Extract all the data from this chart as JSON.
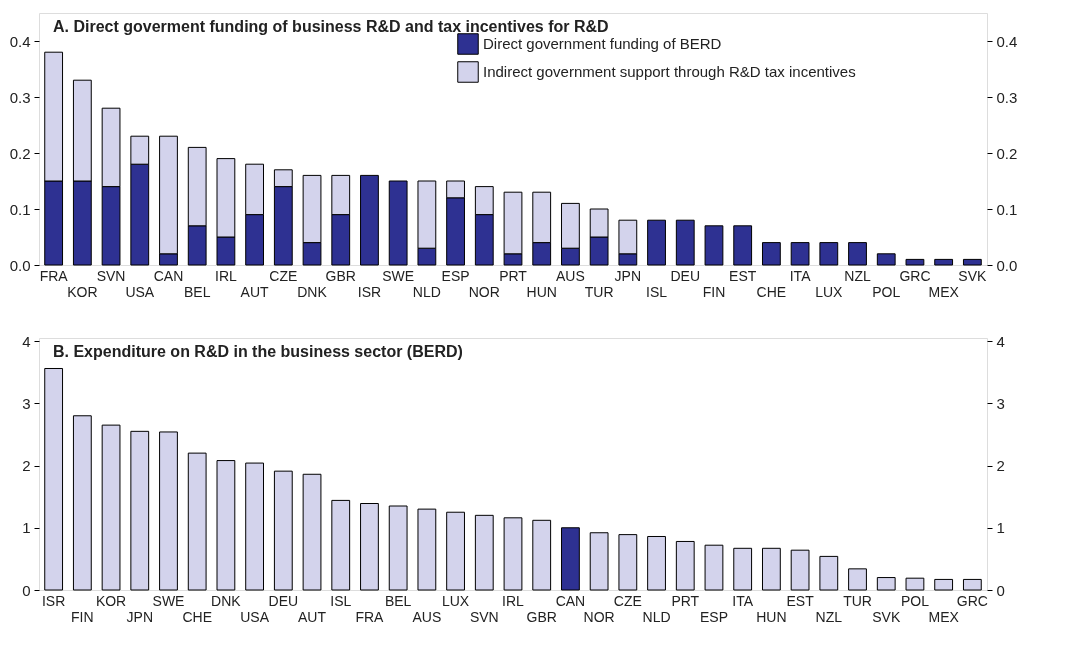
{
  "chart_data": [
    {
      "type": "bar",
      "title": "A. Direct goverment funding of business R&D and tax incentives for R&D",
      "stacked": true,
      "legend": "top right",
      "categories": [
        "FRA",
        "KOR",
        "SVN",
        "USA",
        "CAN",
        "BEL",
        "IRL",
        "AUT",
        "CZE",
        "DNK",
        "GBR",
        "ISR",
        "SWE",
        "NLD",
        "ESP",
        "NOR",
        "PRT",
        "HUN",
        "AUS",
        "TUR",
        "JPN",
        "ISL",
        "DEU",
        "FIN",
        "EST",
        "CHE",
        "ITA",
        "LUX",
        "NZL",
        "POL",
        "GRC",
        "MEX",
        "SVK"
      ],
      "series": [
        {
          "name": "Direct government funding of BERD",
          "color": "#2e3192",
          "values": [
            0.15,
            0.15,
            0.14,
            0.18,
            0.02,
            0.07,
            0.05,
            0.09,
            0.14,
            0.04,
            0.09,
            0.16,
            0.15,
            0.03,
            0.12,
            0.09,
            0.02,
            0.04,
            0.03,
            0.05,
            0.02,
            0.08,
            0.08,
            0.07,
            0.07,
            0.04,
            0.04,
            0.04,
            0.04,
            0.02,
            0.01,
            0.01,
            0.01
          ]
        },
        {
          "name": "Indirect government support through R&D tax incentives",
          "color": "#d3d3ec",
          "values": [
            0.23,
            0.18,
            0.14,
            0.05,
            0.21,
            0.14,
            0.14,
            0.09,
            0.03,
            0.12,
            0.07,
            null,
            null,
            0.12,
            0.03,
            0.05,
            0.11,
            0.09,
            0.08,
            0.05,
            0.06,
            null,
            null,
            null,
            null,
            null,
            null,
            null,
            null,
            null,
            null,
            null,
            null
          ]
        }
      ],
      "ylim": [
        0,
        0.45
      ],
      "yticks": [
        {
          "value": 0,
          "label": "0.0"
        },
        0.1,
        0.2,
        0.3,
        0.4
      ],
      "y2lim": [
        0,
        0.45
      ],
      "y2ticks": [
        {
          "value": 0,
          "label": "0.0"
        },
        0.1,
        0.2,
        0.3,
        0.4
      ]
    },
    {
      "type": "bar",
      "title": "B. Expenditure on R&D in the business sector (BERD)",
      "categories": [
        "ISR",
        "FIN",
        "KOR",
        "JPN",
        "SWE",
        "CHE",
        "DNK",
        "USA",
        "DEU",
        "AUT",
        "ISL",
        "FRA",
        "BEL",
        "AUS",
        "LUX",
        "SVN",
        "IRL",
        "GBR",
        "CAN",
        "NOR",
        "CZE",
        "NLD",
        "PRT",
        "ESP",
        "ITA",
        "HUN",
        "EST",
        "NZL",
        "TUR",
        "SVK",
        "POL",
        "MEX",
        "GRC"
      ],
      "values": [
        3.56,
        2.8,
        2.65,
        2.55,
        2.54,
        2.2,
        2.08,
        2.04,
        1.91,
        1.86,
        1.44,
        1.39,
        1.35,
        1.3,
        1.25,
        1.2,
        1.16,
        1.12,
        1.0,
        0.92,
        0.89,
        0.86,
        0.78,
        0.72,
        0.67,
        0.67,
        0.64,
        0.54,
        0.34,
        0.2,
        0.19,
        0.17,
        0.17
      ],
      "colors": [
        "#d3d3ec",
        "#d3d3ec",
        "#d3d3ec",
        "#d3d3ec",
        "#d3d3ec",
        "#d3d3ec",
        "#d3d3ec",
        "#d3d3ec",
        "#d3d3ec",
        "#d3d3ec",
        "#d3d3ec",
        "#d3d3ec",
        "#d3d3ec",
        "#d3d3ec",
        "#d3d3ec",
        "#d3d3ec",
        "#d3d3ec",
        "#d3d3ec",
        "#2e3192",
        "#d3d3ec",
        "#d3d3ec",
        "#d3d3ec",
        "#d3d3ec",
        "#d3d3ec",
        "#d3d3ec",
        "#d3d3ec",
        "#d3d3ec",
        "#d3d3ec",
        "#d3d3ec",
        "#d3d3ec",
        "#d3d3ec",
        "#d3d3ec",
        "#d3d3ec"
      ],
      "ylim": [
        0,
        4.05
      ],
      "yticks": [
        0,
        1,
        2,
        3,
        4
      ],
      "y2lim": [
        0,
        4.05
      ],
      "y2ticks": [
        0,
        1,
        2,
        3,
        4
      ]
    }
  ]
}
